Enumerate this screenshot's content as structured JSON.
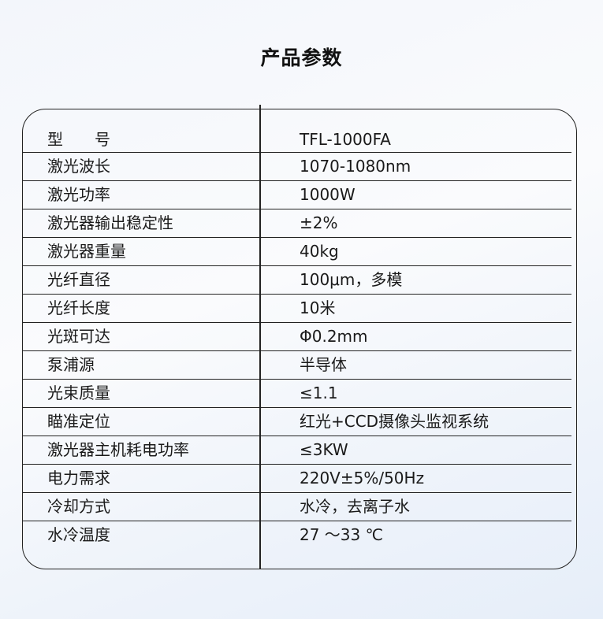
{
  "title": "产品参数",
  "rows": [
    {
      "label": "型　　号",
      "value": "TFL-1000FA"
    },
    {
      "label": "激光波长",
      "value": "1070-1080nm"
    },
    {
      "label": "激光功率",
      "value": "1000W"
    },
    {
      "label": "激光器输出稳定性",
      "value": "±2%"
    },
    {
      "label": "激光器重量",
      "value": "40kg"
    },
    {
      "label": "光纤直径",
      "value": "100μm，多模"
    },
    {
      "label": "光纤长度",
      "value": "10米"
    },
    {
      "label": "光斑可达",
      "value": "Φ0.2mm"
    },
    {
      "label": "泵浦源",
      "value": "半导体"
    },
    {
      "label": "光束质量",
      "value": "≤1.1"
    },
    {
      "label": "瞄准定位",
      "value": "红光+CCD摄像头监视系统"
    },
    {
      "label": "激光器主机耗电功率",
      "value": "≤3KW"
    },
    {
      "label": "电力需求",
      "value": "220V±5%/50Hz"
    },
    {
      "label": "冷却方式",
      "value": "水冷，去离子水"
    },
    {
      "label": "水冷温度",
      "value": "27 ～33 ℃"
    }
  ]
}
